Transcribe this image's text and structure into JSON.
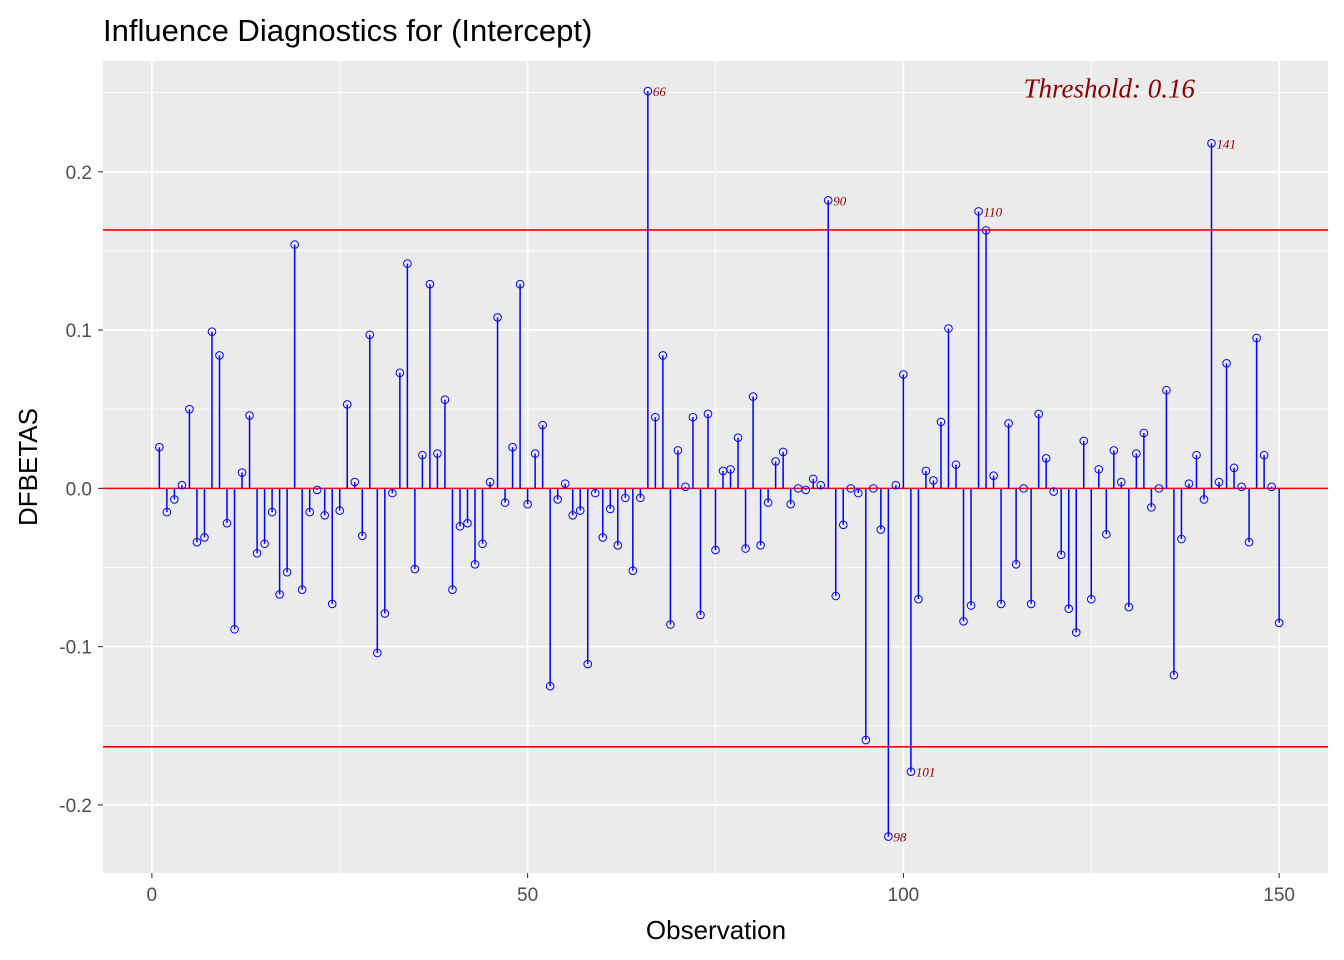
{
  "chart_data": {
    "type": "line",
    "subtype": "lollipop",
    "title": "Influence Diagnostics for (Intercept)",
    "xlabel": "Observation",
    "ylabel": "DFBETAS",
    "xlim": [
      -6.5,
      156.5
    ],
    "ylim": [
      -0.243,
      0.27
    ],
    "x_ticks": [
      0,
      50,
      100,
      150
    ],
    "x_tick_labels": [
      "0",
      "50",
      "100",
      "150"
    ],
    "y_ticks": [
      -0.2,
      -0.1,
      0.0,
      0.1,
      0.2
    ],
    "y_tick_labels": [
      "-0.2",
      "-0.1",
      "0.0",
      "0.1",
      "0.2"
    ],
    "grid": true,
    "threshold": 0.1633,
    "threshold_label": "Threshold: 0.16",
    "x": [
      1,
      2,
      3,
      4,
      5,
      6,
      7,
      8,
      9,
      10,
      11,
      12,
      13,
      14,
      15,
      16,
      17,
      18,
      19,
      20,
      21,
      22,
      23,
      24,
      25,
      26,
      27,
      28,
      29,
      30,
      31,
      32,
      33,
      34,
      35,
      36,
      37,
      38,
      39,
      40,
      41,
      42,
      43,
      44,
      45,
      46,
      47,
      48,
      49,
      50,
      51,
      52,
      53,
      54,
      55,
      56,
      57,
      58,
      59,
      60,
      61,
      62,
      63,
      64,
      65,
      66,
      67,
      68,
      69,
      70,
      71,
      72,
      73,
      74,
      75,
      76,
      77,
      78,
      79,
      80,
      81,
      82,
      83,
      84,
      85,
      86,
      87,
      88,
      89,
      90,
      91,
      92,
      93,
      94,
      95,
      96,
      97,
      98,
      99,
      100,
      101,
      102,
      103,
      104,
      105,
      106,
      107,
      108,
      109,
      110,
      111,
      112,
      113,
      114,
      115,
      116,
      117,
      118,
      119,
      120,
      121,
      122,
      123,
      124,
      125,
      126,
      127,
      128,
      129,
      130,
      131,
      132,
      133,
      134,
      135,
      136,
      137,
      138,
      139,
      140,
      141,
      142,
      143,
      144,
      145,
      146,
      147,
      148,
      149,
      150
    ],
    "values": [
      0.026,
      -0.015,
      -0.007,
      0.002,
      0.05,
      -0.034,
      -0.031,
      0.099,
      0.084,
      -0.022,
      -0.089,
      0.01,
      0.046,
      -0.041,
      -0.035,
      -0.015,
      -0.067,
      -0.053,
      0.154,
      -0.064,
      -0.015,
      -0.001,
      -0.017,
      -0.073,
      -0.014,
      0.053,
      0.004,
      -0.03,
      0.097,
      -0.104,
      -0.079,
      -0.003,
      0.073,
      0.142,
      -0.051,
      0.021,
      0.129,
      0.022,
      0.056,
      -0.064,
      -0.024,
      -0.022,
      -0.048,
      -0.035,
      0.004,
      0.108,
      -0.009,
      0.026,
      0.129,
      -0.01,
      0.022,
      0.04,
      -0.125,
      -0.007,
      0.003,
      -0.017,
      -0.014,
      -0.111,
      -0.003,
      -0.031,
      -0.013,
      -0.036,
      -0.006,
      -0.052,
      -0.006,
      0.251,
      0.045,
      0.084,
      -0.086,
      0.024,
      0.001,
      0.045,
      -0.08,
      0.047,
      -0.039,
      0.011,
      0.012,
      0.032,
      -0.038,
      0.058,
      -0.036,
      -0.009,
      0.017,
      0.023,
      -0.01,
      0.0,
      -0.001,
      0.006,
      0.002,
      0.182,
      -0.068,
      -0.023,
      0.0,
      -0.003,
      -0.159,
      0.0,
      -0.026,
      -0.22,
      0.002,
      0.072,
      -0.179,
      -0.07,
      0.011,
      0.005,
      0.042,
      0.101,
      0.015,
      -0.084,
      -0.074,
      0.175,
      0.163,
      0.008,
      -0.073,
      0.041,
      -0.048,
      0.0,
      -0.073,
      0.047,
      0.019,
      -0.002,
      -0.042,
      -0.076,
      -0.091,
      0.03,
      -0.07,
      0.012,
      -0.029,
      0.024,
      0.004,
      -0.075,
      0.022,
      0.035,
      -0.012,
      0.0,
      0.062,
      -0.118,
      -0.032,
      0.003,
      0.021,
      -0.007,
      0.218,
      0.004,
      0.079,
      0.013,
      0.001,
      -0.034,
      0.095,
      0.021,
      0.001,
      -0.085
    ],
    "labeled_points": [
      {
        "x": 66,
        "y": 0.251,
        "label": "66"
      },
      {
        "x": 90,
        "y": 0.182,
        "label": "90"
      },
      {
        "x": 98,
        "y": -0.22,
        "label": "98"
      },
      {
        "x": 101,
        "y": -0.179,
        "label": "101"
      },
      {
        "x": 110,
        "y": 0.175,
        "label": "110"
      },
      {
        "x": 141,
        "y": 0.218,
        "label": "141"
      }
    ],
    "colors": {
      "stem": "#0000ff",
      "point": "#0000ff",
      "reference_lines": "#ff0000",
      "panel_background": "#ebebeb",
      "grid": "#ffffff",
      "label": "#8b0000"
    }
  }
}
